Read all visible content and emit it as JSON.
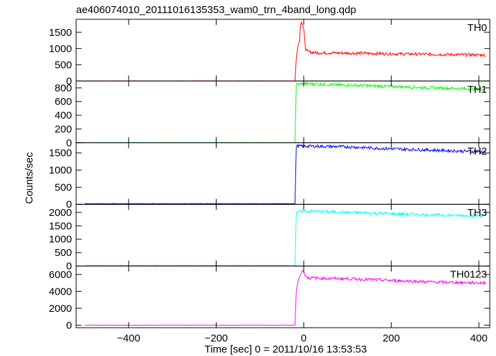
{
  "title": "ae406074010_20111016135353_wam0_trn_4band_long.qdp",
  "xlabel": "Time [sec] 0 = 2011/10/16 13:53:53",
  "ylabel": "Counts/sec",
  "chart_data": {
    "type": "line",
    "title": "ae406074010_20111016135353_wam0_trn_4band_long.qdp",
    "xlabel": "Time [sec] 0 = 2011/10/16 13:53:53",
    "ylabel": "Counts/sec",
    "xlim": [
      -520,
      425
    ],
    "x_ticks": [
      -400,
      -200,
      0,
      200,
      400
    ],
    "x_tick_labels": [
      "−400",
      "−200",
      "0",
      "200",
      "400"
    ],
    "grid": false,
    "panels": [
      {
        "name": "TH0",
        "color": "#ff0000",
        "ylim": [
          0,
          1900
        ],
        "y_ticks": [
          0,
          500,
          1000,
          1500
        ],
        "series_points": [
          [
            -500,
            0
          ],
          [
            -20,
            0
          ],
          [
            -17,
            700
          ],
          [
            -14,
            1050
          ],
          [
            -10,
            1200
          ],
          [
            -6,
            1900
          ],
          [
            -3,
            1750
          ],
          [
            0,
            1600
          ],
          [
            4,
            1000
          ],
          [
            10,
            900
          ],
          [
            30,
            870
          ],
          [
            100,
            860
          ],
          [
            200,
            840
          ],
          [
            300,
            820
          ],
          [
            415,
            800
          ]
        ]
      },
      {
        "name": "TH1",
        "color": "#00ff00",
        "ylim": [
          0,
          900
        ],
        "y_ticks": [
          0,
          200,
          400,
          600,
          800
        ],
        "series_points": [
          [
            -500,
            0
          ],
          [
            -20,
            0
          ],
          [
            -17,
            850
          ],
          [
            0,
            860
          ],
          [
            100,
            840
          ],
          [
            200,
            820
          ],
          [
            300,
            800
          ],
          [
            415,
            780
          ]
        ]
      },
      {
        "name": "TH2",
        "color": "#0000ff",
        "ylim": [
          0,
          1800
        ],
        "y_ticks": [
          0,
          500,
          1000,
          1500
        ],
        "series_points": [
          [
            -500,
            20
          ],
          [
            -20,
            20
          ],
          [
            -17,
            1700
          ],
          [
            0,
            1700
          ],
          [
            100,
            1680
          ],
          [
            200,
            1620
          ],
          [
            300,
            1580
          ],
          [
            415,
            1530
          ]
        ]
      },
      {
        "name": "TH3",
        "color": "#00ffff",
        "ylim": [
          0,
          2300
        ],
        "y_ticks": [
          0,
          500,
          1000,
          1500,
          2000
        ],
        "series_points": [
          [
            -500,
            20
          ],
          [
            -20,
            20
          ],
          [
            -17,
            2000
          ],
          [
            0,
            2050
          ],
          [
            100,
            2000
          ],
          [
            200,
            1950
          ],
          [
            300,
            1900
          ],
          [
            415,
            1870
          ]
        ]
      },
      {
        "name": "TH0123",
        "color": "#ff00ff",
        "ylim": [
          -300,
          7000
        ],
        "y_ticks": [
          0,
          2000,
          4000,
          6000
        ],
        "series_points": [
          [
            -500,
            0
          ],
          [
            -20,
            0
          ],
          [
            -17,
            4000
          ],
          [
            -12,
            5600
          ],
          [
            -6,
            6000
          ],
          [
            -2,
            6600
          ],
          [
            2,
            6000
          ],
          [
            10,
            5600
          ],
          [
            50,
            5550
          ],
          [
            100,
            5500
          ],
          [
            200,
            5300
          ],
          [
            300,
            5100
          ],
          [
            415,
            5000
          ]
        ]
      }
    ]
  }
}
